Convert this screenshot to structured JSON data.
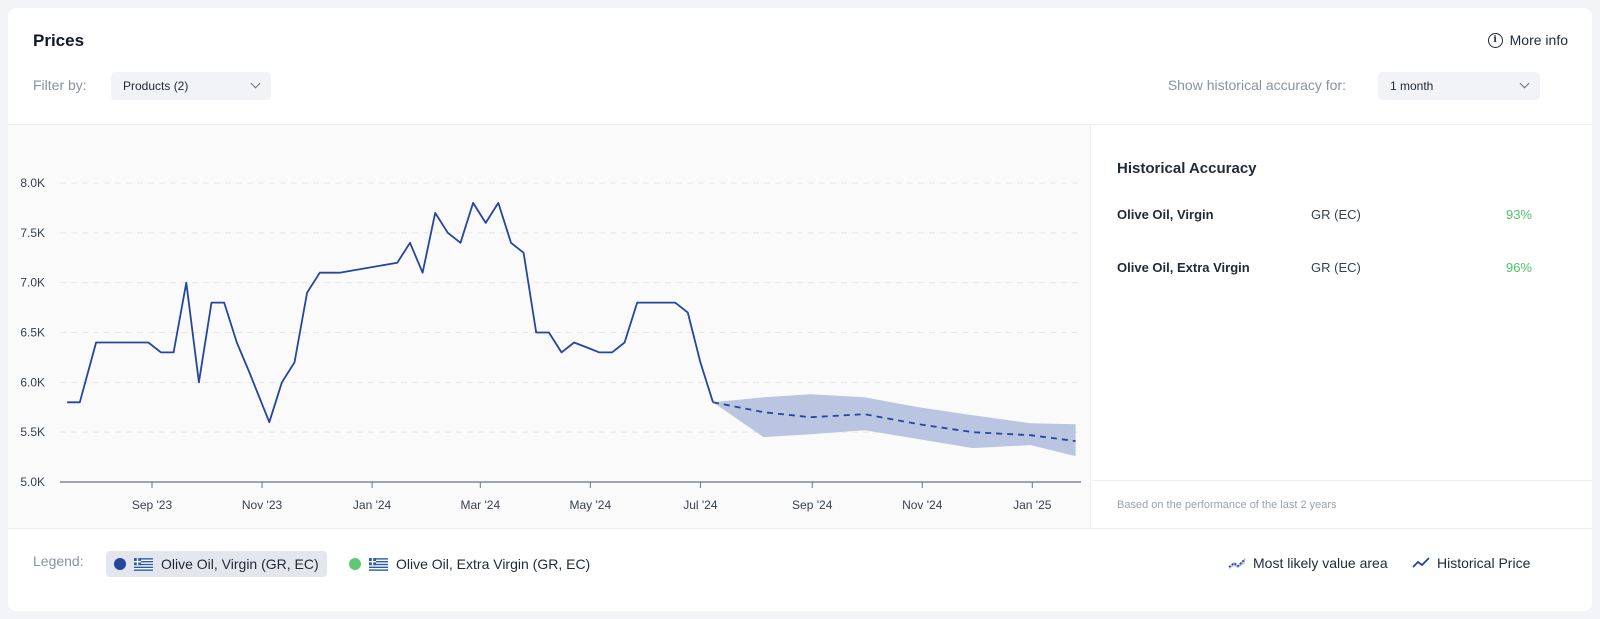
{
  "header": {
    "title": "Prices",
    "more_info": "More info",
    "filter_label": "Filter by:",
    "products_select": "Products (2)",
    "hist_label": "Show historical accuracy for:",
    "period_select": "1 month"
  },
  "chart_data": {
    "type": "line",
    "ylim": [
      5000,
      8000
    ],
    "yticks": [
      5000,
      5500,
      6000,
      6500,
      7000,
      7500,
      8000
    ],
    "ytick_labels": [
      "5.0K",
      "5.5K",
      "6.0K",
      "6.5K",
      "7.0K",
      "7.5K",
      "8.0K"
    ],
    "xlim": [
      "2023-07-12",
      "2025-01-28"
    ],
    "xticks": [
      "2023-09-01",
      "2023-11-01",
      "2024-01-01",
      "2024-03-01",
      "2024-05-01",
      "2024-07-01",
      "2024-09-01",
      "2024-11-01",
      "2025-01-01"
    ],
    "xtick_labels": [
      "Sep '23",
      "Nov '23",
      "Jan '24",
      "Mar '24",
      "May '24",
      "Jul '24",
      "Sep '24",
      "Nov '24",
      "Jan '25"
    ],
    "series": [
      {
        "name": "Historical Price",
        "x": [
          "2023-07-16",
          "2023-07-23",
          "2023-08-01",
          "2023-08-30",
          "2023-09-06",
          "2023-09-13",
          "2023-09-20",
          "2023-09-27",
          "2023-10-04",
          "2023-10-11",
          "2023-10-18",
          "2023-10-25",
          "2023-11-05",
          "2023-11-12",
          "2023-11-19",
          "2023-11-26",
          "2023-12-03",
          "2023-12-14",
          "2024-01-15",
          "2024-01-22",
          "2024-01-29",
          "2024-02-05",
          "2024-02-12",
          "2024-02-19",
          "2024-02-26",
          "2024-03-04",
          "2024-03-11",
          "2024-03-18",
          "2024-03-25",
          "2024-04-01",
          "2024-04-08",
          "2024-04-15",
          "2024-04-22",
          "2024-04-29",
          "2024-05-06",
          "2024-05-13",
          "2024-05-20",
          "2024-05-27",
          "2024-06-17",
          "2024-06-24",
          "2024-07-01",
          "2024-07-08"
        ],
        "y": [
          5800,
          5800,
          6400,
          6400,
          6300,
          6300,
          7000,
          6000,
          6800,
          6800,
          6400,
          6100,
          5600,
          6000,
          6200,
          6900,
          7100,
          7100,
          7200,
          7400,
          7100,
          7700,
          7500,
          7400,
          7800,
          7600,
          7800,
          7400,
          7300,
          6500,
          6500,
          6300,
          6400,
          6350,
          6300,
          6300,
          6400,
          6800,
          6800,
          6700,
          6200,
          5800
        ]
      },
      {
        "name": "Forecast",
        "x": [
          "2024-07-08",
          "2024-08-05",
          "2024-08-31",
          "2024-09-30",
          "2024-10-30",
          "2024-11-29",
          "2024-12-31",
          "2025-01-25"
        ],
        "y": [
          5800,
          5700,
          5650,
          5680,
          5580,
          5500,
          5470,
          5410
        ],
        "lower": [
          5800,
          5450,
          5480,
          5520,
          5430,
          5340,
          5370,
          5260
        ],
        "upper": [
          5800,
          5850,
          5880,
          5850,
          5750,
          5670,
          5590,
          5580
        ]
      }
    ]
  },
  "accuracy": {
    "title": "Historical Accuracy",
    "rows": [
      {
        "name": "Olive Oil, Virgin",
        "region": "GR (EC)",
        "value": "93%"
      },
      {
        "name": "Olive Oil, Extra Virgin",
        "region": "GR (EC)",
        "value": "96%"
      }
    ],
    "footnote": "Based on the performance of the last 2 years"
  },
  "legend": {
    "label": "Legend:",
    "items": [
      {
        "label": "Olive Oil, Virgin (GR, EC)",
        "color": "#26459c"
      },
      {
        "label": "Olive Oil, Extra Virgin (GR, EC)",
        "color": "#5fc875"
      }
    ],
    "area_label": "Most likely value area",
    "historical_label": "Historical Price"
  },
  "colors": {
    "line": "#26459c",
    "band": "#b6c2df",
    "accent_green": "#4cc16d"
  }
}
